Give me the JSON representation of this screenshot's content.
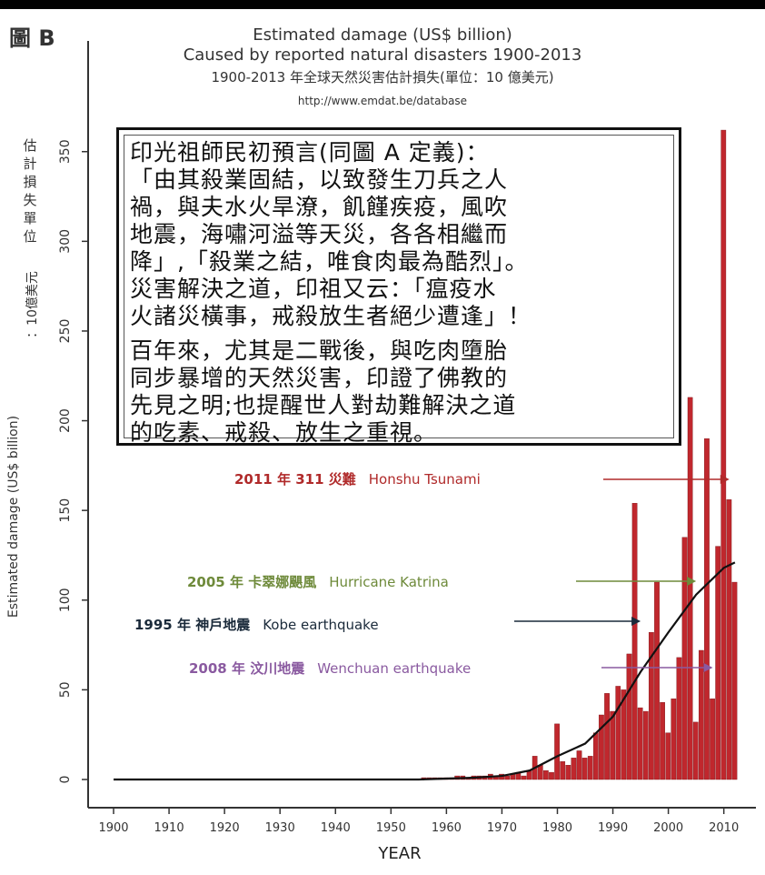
{
  "figure_label": "圖 B",
  "titles": {
    "line1": "Estimated damage (US$ billion)",
    "line2": "Caused by reported natural disasters 1900-2013",
    "line3": "1900-2013 年全球天然災害估計損失(單位：10 億美元)",
    "url": "http://www.emdat.be/database"
  },
  "y_axis_labels": {
    "chinese_top": "估計損失單位",
    "chinese_side": "：10億美元",
    "english": "Estimated damage (US$ billion)"
  },
  "textbox": {
    "para1": [
      "印光祖師民初預言(同圖 A 定義)：",
      "「由其殺業固結，以致發生刀兵之人",
      "禍，與夫水火旱潦，飢饉疾疫，風吹",
      "地震，海嘯河溢等天災，各各相繼而",
      "降」,「殺業之結，唯食肉最為酷烈」。",
      "災害解決之道，印祖又云：「瘟疫水",
      "火諸災橫事，戒殺放生者絕少遭逢」！"
    ],
    "para2": [
      "百年來，尤其是二戰後，與吃肉墮胎",
      "同步暴增的天然災害，印證了佛教的",
      "先見之明;也提醒世人對劫難解決之道",
      "的吃素、戒殺、放生之重視。"
    ]
  },
  "annotations": [
    {
      "cn": "2011 年 311 災難",
      "en": "Honshu Tsunami",
      "color": "#b02a2a"
    },
    {
      "cn": "2005 年  卡翠娜颶風",
      "en": "Hurricane Katrina",
      "color": "#6e8a3a"
    },
    {
      "cn": "1995 年  神戶地震",
      "en": "Kobe earthquake",
      "color": "#1a2a3a"
    },
    {
      "cn": "2008 年  汶川地震",
      "en": "Wenchuan earthquake",
      "color": "#8a5aa0"
    }
  ],
  "chart_data": {
    "type": "bar",
    "title": "Estimated damage (US$ billion)",
    "subtitle": "Caused by reported natural disasters 1900-2013",
    "xlabel": "YEAR",
    "ylabel": "Estimated damage (US$ billion)",
    "xlim": [
      1900,
      2013
    ],
    "ylim": [
      0,
      360
    ],
    "x_ticks": [
      1900,
      1910,
      1920,
      1930,
      1940,
      1950,
      1960,
      1970,
      1980,
      1990,
      2000,
      2010
    ],
    "y_ticks": [
      0,
      50,
      100,
      150,
      200,
      250,
      300,
      350
    ],
    "bar_color": "#c0272d",
    "trend_color": "#111111",
    "years": [
      1956,
      1957,
      1958,
      1959,
      1960,
      1961,
      1962,
      1963,
      1964,
      1965,
      1966,
      1967,
      1968,
      1969,
      1970,
      1971,
      1972,
      1973,
      1974,
      1975,
      1976,
      1977,
      1978,
      1979,
      1980,
      1981,
      1982,
      1983,
      1984,
      1985,
      1986,
      1987,
      1988,
      1989,
      1990,
      1991,
      1992,
      1993,
      1994,
      1995,
      1996,
      1997,
      1998,
      1999,
      2000,
      2001,
      2002,
      2003,
      2004,
      2005,
      2006,
      2007,
      2008,
      2009,
      2010,
      2011,
      2012,
      2013
    ],
    "values": [
      1,
      1,
      1,
      1,
      1,
      1,
      2,
      2,
      1,
      2,
      2,
      2,
      3,
      2,
      3,
      2,
      3,
      4,
      2,
      5,
      13,
      8,
      5,
      4,
      31,
      10,
      8,
      12,
      16,
      12,
      13,
      26,
      36,
      48,
      38,
      52,
      50,
      70,
      154,
      40,
      38,
      82,
      110,
      43,
      26,
      45,
      68,
      135,
      213,
      32,
      72,
      190,
      45,
      130,
      362,
      156,
      110,
      0
    ],
    "trend_years": [
      1900,
      1955,
      1960,
      1965,
      1970,
      1975,
      1980,
      1985,
      1990,
      1995,
      2000,
      2005,
      2010,
      2012
    ],
    "trend_values": [
      0,
      0,
      0.5,
      1,
      2,
      5,
      13,
      20,
      35,
      60,
      82,
      103,
      118,
      121
    ]
  }
}
